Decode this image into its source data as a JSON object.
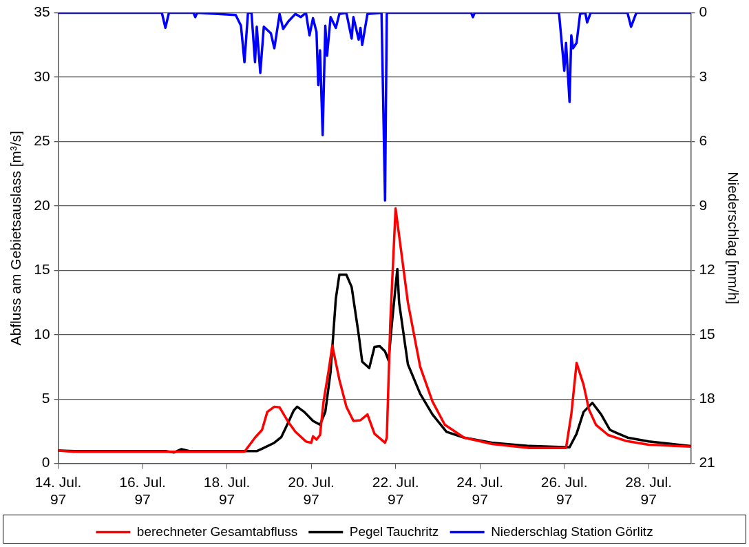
{
  "chart_data": {
    "type": "line",
    "ylabel": "Abfluss am Gebietsauslass [m³/s]",
    "y2label": "Niederschlag [mm/h]",
    "xlim": [
      "1997-07-14",
      "1997-07-29"
    ],
    "xticks": [
      {
        "value": "1997-07-14",
        "label": "14. Jul. 97"
      },
      {
        "value": "1997-07-16",
        "label": "16. Jul. 97"
      },
      {
        "value": "1997-07-18",
        "label": "18. Jul. 97"
      },
      {
        "value": "1997-07-20",
        "label": "20. Jul. 97"
      },
      {
        "value": "1997-07-22",
        "label": "22. Jul. 97"
      },
      {
        "value": "1997-07-24",
        "label": "24. Jul. 97"
      },
      {
        "value": "1997-07-26",
        "label": "26. Jul. 97"
      },
      {
        "value": "1997-07-28",
        "label": "28. Jul. 97"
      }
    ],
    "ylim": [
      0,
      35
    ],
    "yticks": [
      0,
      5,
      10,
      15,
      20,
      25,
      30,
      35
    ],
    "y2lim": [
      21,
      0
    ],
    "y2ticks": [
      0,
      3,
      6,
      9,
      12,
      15,
      18,
      21
    ],
    "grid": "y",
    "legend": "bottom",
    "marker": "none",
    "line_style": "solid",
    "series": [
      {
        "name": "berechneter Gesamtabfluss",
        "color": "#ff0000",
        "x": [
          "1997-07-14T00:00",
          "1997-07-14T09:00",
          "1997-07-18T10:00",
          "1997-07-18T16:00",
          "1997-07-18T20:00",
          "1997-07-18T23:00",
          "1997-07-19T03:00",
          "1997-07-19T06:00",
          "1997-07-19T11:00",
          "1997-07-19T15:00",
          "1997-07-19T21:00",
          "1997-07-20T00:00",
          "1997-07-20T01:00",
          "1997-07-20T03:00",
          "1997-07-20T05:00",
          "1997-07-20T07:00",
          "1997-07-20T10:00",
          "1997-07-20T12:00",
          "1997-07-20T16:00",
          "1997-07-20T20:00",
          "1997-07-21T00:00",
          "1997-07-21T04:00",
          "1997-07-21T08:00",
          "1997-07-21T12:00",
          "1997-07-21T18:00",
          "1997-07-21T19:00",
          "1997-07-21T21:00",
          "1997-07-22T00:00",
          "1997-07-22T07:00",
          "1997-07-22T14:00",
          "1997-07-22T21:00",
          "1997-07-23T04:00",
          "1997-07-23T15:00",
          "1997-07-24T07:00",
          "1997-07-25T04:00",
          "1997-07-26T01:00",
          "1997-07-26T04:00",
          "1997-07-26T07:00",
          "1997-07-26T11:00",
          "1997-07-26T14:00",
          "1997-07-26T18:00",
          "1997-07-27T01:00",
          "1997-07-27T11:00",
          "1997-07-28T00:00",
          "1997-07-29T00:00"
        ],
        "values": [
          1.0,
          0.9,
          0.9,
          2.0,
          2.6,
          4.0,
          4.4,
          4.35,
          3.2,
          2.45,
          1.7,
          1.6,
          2.1,
          1.85,
          2.2,
          4.8,
          7.3,
          9.15,
          6.5,
          4.4,
          3.3,
          3.35,
          3.8,
          2.3,
          1.6,
          2.0,
          11,
          19.8,
          12.5,
          7.5,
          4.8,
          3.0,
          2.0,
          1.5,
          1.2,
          1.2,
          3.8,
          7.8,
          6.1,
          4.2,
          3.0,
          2.2,
          1.75,
          1.45,
          1.3
        ]
      },
      {
        "name": "Pegel Tauchritz",
        "color": "#000000",
        "x": [
          "1997-07-14T00:00",
          "1997-07-14T09:00",
          "1997-07-16T13:00",
          "1997-07-16T18:00",
          "1997-07-16T22:00",
          "1997-07-17T03:00",
          "1997-07-18T17:00",
          "1997-07-18T21:00",
          "1997-07-19T03:00",
          "1997-07-19T07:00",
          "1997-07-19T11:00",
          "1997-07-19T14:00",
          "1997-07-19T16:00",
          "1997-07-19T20:00",
          "1997-07-20T01:00",
          "1997-07-20T05:00",
          "1997-07-20T08:00",
          "1997-07-20T11:00",
          "1997-07-20T14:00",
          "1997-07-20T16:00",
          "1997-07-20T20:00",
          "1997-07-20T23:00",
          "1997-07-21T03:00",
          "1997-07-21T05:00",
          "1997-07-21T09:00",
          "1997-07-21T12:00",
          "1997-07-21T15:00",
          "1997-07-21T18:00",
          "1997-07-21T20:00",
          "1997-07-21T22:00",
          "1997-07-22T01:00",
          "1997-07-22T02:00",
          "1997-07-22T07:00",
          "1997-07-22T14:00",
          "1997-07-22T21:00",
          "1997-07-23T05:00",
          "1997-07-23T15:00",
          "1997-07-24T07:00",
          "1997-07-25T04:00",
          "1997-07-26T03:00",
          "1997-07-26T07:00",
          "1997-07-26T11:00",
          "1997-07-26T16:00",
          "1997-07-26T21:00",
          "1997-07-27T02:00",
          "1997-07-27T06:00",
          "1997-07-27T12:00",
          "1997-07-28T00:00",
          "1997-07-29T00:00"
        ],
        "values": [
          1.0,
          0.95,
          0.95,
          0.85,
          1.1,
          0.95,
          0.95,
          1.2,
          1.6,
          2.05,
          3.2,
          4.1,
          4.4,
          4.0,
          3.3,
          3.0,
          4.0,
          7.1,
          12.8,
          14.65,
          14.65,
          13.7,
          10.0,
          7.9,
          7.4,
          9.05,
          9.1,
          8.7,
          8.0,
          11,
          15.1,
          12.5,
          7.7,
          5.4,
          3.8,
          2.45,
          2.0,
          1.6,
          1.35,
          1.25,
          2.3,
          4.0,
          4.7,
          3.8,
          2.6,
          2.35,
          2.0,
          1.7,
          1.35
        ]
      },
      {
        "name": "Niederschlag Station Görlitz",
        "color": "#0000ff",
        "axis": "y2",
        "x": [
          "1997-07-14T00:00",
          "1997-07-16T11:00",
          "1997-07-16T13:00",
          "1997-07-16T15:00",
          "1997-07-17T05:00",
          "1997-07-17T06:00",
          "1997-07-17T07:00",
          "1997-07-18T05:00",
          "1997-07-18T08:00",
          "1997-07-18T10:00",
          "1997-07-18T12:00",
          "1997-07-18T14:00",
          "1997-07-18T16:00",
          "1997-07-18T17:00",
          "1997-07-18T19:00",
          "1997-07-18T21:00",
          "1997-07-18T23:00",
          "1997-07-19T01:00",
          "1997-07-19T03:00",
          "1997-07-19T06:00",
          "1997-07-19T08:00",
          "1997-07-19T11:00",
          "1997-07-19T15:00",
          "1997-07-19T18:00",
          "1997-07-19T21:00",
          "1997-07-19T23:00",
          "1997-07-20T01:00",
          "1997-07-20T03:00",
          "1997-07-20T04:00",
          "1997-07-20T05:00",
          "1997-07-20T06:30",
          "1997-07-20T08:00",
          "1997-07-20T09:00",
          "1997-07-20T11:00",
          "1997-07-20T14:00",
          "1997-07-20T16:00",
          "1997-07-20T20:00",
          "1997-07-20T23:00",
          "1997-07-21T00:00",
          "1997-07-21T03:00",
          "1997-07-21T04:00",
          "1997-07-21T05:00",
          "1997-07-21T08:00",
          "1997-07-21T16:00",
          "1997-07-21T18:00",
          "1997-07-21T19:00",
          "1997-07-23T19:00",
          "1997-07-23T20:00",
          "1997-07-23T21:00",
          "1997-07-25T21:00",
          "1997-07-26T00:00",
          "1997-07-26T01:00",
          "1997-07-26T03:00",
          "1997-07-26T04:00",
          "1997-07-26T05:00",
          "1997-07-26T07:00",
          "1997-07-26T09:00",
          "1997-07-26T12:00",
          "1997-07-26T13:00",
          "1997-07-26T15:00",
          "1997-07-27T12:00",
          "1997-07-27T14:00",
          "1997-07-27T17:00",
          "1997-07-29T00:00"
        ],
        "values": [
          0,
          0,
          0.7,
          0,
          0,
          0.2,
          0,
          0.1,
          0.6,
          2.3,
          0,
          0,
          2.3,
          0.65,
          2.8,
          0.65,
          0.8,
          0.95,
          1.65,
          0.05,
          0.75,
          0.4,
          0.05,
          0.2,
          0,
          1.05,
          0.25,
          0.9,
          3.37,
          1.75,
          5.7,
          0.6,
          2.0,
          0.2,
          0.7,
          0.05,
          0,
          1.2,
          0.2,
          1.25,
          0.7,
          1.5,
          0.05,
          0,
          8.75,
          0,
          0,
          0.2,
          0,
          0,
          2.7,
          1.4,
          4.15,
          1.05,
          1.65,
          1.4,
          0.05,
          0,
          0.45,
          0,
          0,
          0.65,
          0,
          0
        ]
      }
    ]
  }
}
